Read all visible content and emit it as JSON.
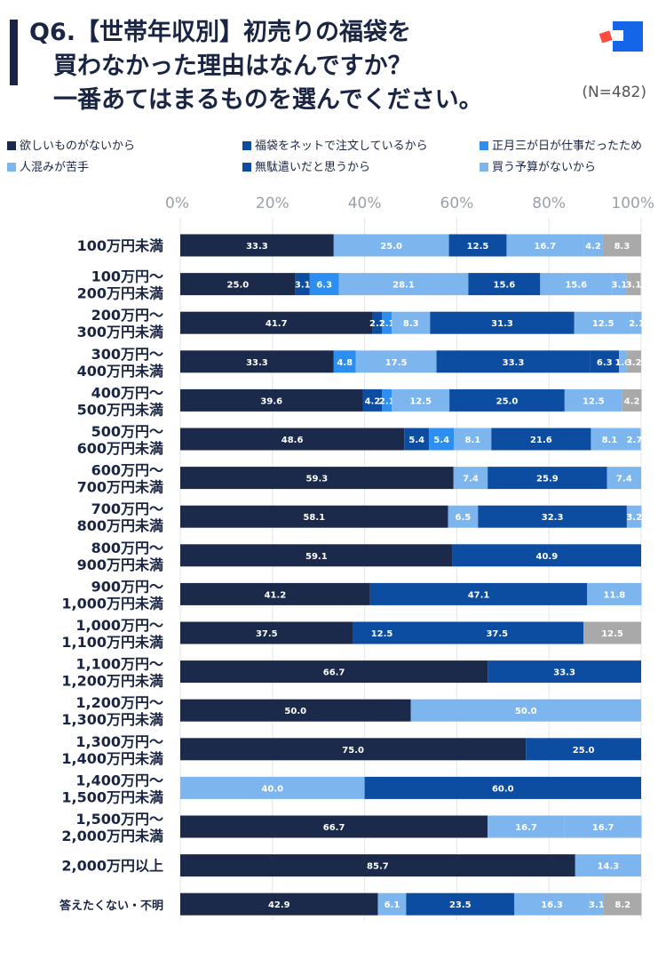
{
  "title": "Q6.【世帯年収別】初売りの福袋を\n　買わなかった理由はなんですか？\n　一番あてはまるものを選んでください。",
  "sample_size": "(N=482)",
  "colors": {
    "navy": "#1b2a4a",
    "light_blue": "#7db6ef",
    "blue_dark": "#0c4da2",
    "sky": "#2b8ef0",
    "gray": "#a9a9a9"
  },
  "chart_data": {
    "type": "bar",
    "orientation": "horizontal",
    "stacked": true,
    "title": "Q6.【世帯年収別】初売りの福袋を買わなかった理由はなんですか？一番あてはまるものを選んでください。",
    "xlabel": "",
    "ylabel": "",
    "xlim": [
      0,
      100
    ],
    "x_ticks": [
      "0%",
      "20%",
      "40%",
      "60%",
      "80%",
      "100%"
    ],
    "grid": true,
    "legend": [
      {
        "name": "欲しいものがないから",
        "color": "#1b2a4a"
      },
      {
        "name": "福袋をネットで注文しているから",
        "color": "#0c4da2"
      },
      {
        "name": "正月三が日が仕事だったため",
        "color": "#2b8ef0"
      },
      {
        "name": "人混みが苦手",
        "color": "#7db6ef"
      },
      {
        "name": "無駄遣いだと思うから",
        "color": "#0c4da2"
      },
      {
        "name": "買う予算がないから",
        "color": "#7db6ef"
      }
    ],
    "categories": [
      "100万円未満",
      "100万円〜\n200万円未満",
      "200万円〜\n300万円未満",
      "300万円〜\n400万円未満",
      "400万円〜\n500万円未満",
      "500万円〜\n600万円未満",
      "600万円〜\n700万円未満",
      "700万円〜\n800万円未満",
      "800万円〜\n900万円未満",
      "900万円〜\n1,000万円未満",
      "1,000万円〜\n1,100万円未満",
      "1,100万円〜\n1,200万円未満",
      "1,200万円〜\n1,300万円未満",
      "1,300万円〜\n1,400万円未満",
      "1,400万円〜\n1,500万円未満",
      "1,500万円〜\n2,000万円未満",
      "2,000万円以上",
      "答えたくない・不明"
    ],
    "rows": [
      [
        {
          "v": 33.3,
          "c": "#1b2a4a",
          "l": "33.3"
        },
        {
          "v": 25.0,
          "c": "#7db6ef",
          "l": "25.0"
        },
        {
          "v": 12.5,
          "c": "#0c4da2",
          "l": "12.5"
        },
        {
          "v": 16.7,
          "c": "#7db6ef",
          "l": "16.7"
        },
        {
          "v": 4.2,
          "c": "#7db6ef",
          "l": "4.2"
        },
        {
          "v": 8.3,
          "c": "#a9a9a9",
          "l": "8.3"
        }
      ],
      [
        {
          "v": 25.0,
          "c": "#1b2a4a",
          "l": "25.0"
        },
        {
          "v": 3.1,
          "c": "#0c4da2",
          "l": "3.1"
        },
        {
          "v": 6.3,
          "c": "#2b8ef0",
          "l": "6.3"
        },
        {
          "v": 28.1,
          "c": "#7db6ef",
          "l": "28.1"
        },
        {
          "v": 15.6,
          "c": "#0c4da2",
          "l": "15.6"
        },
        {
          "v": 15.6,
          "c": "#7db6ef",
          "l": "15.6"
        },
        {
          "v": 3.1,
          "c": "#7db6ef",
          "l": "3.1"
        },
        {
          "v": 3.1,
          "c": "#a9a9a9",
          "l": "3.1"
        }
      ],
      [
        {
          "v": 41.7,
          "c": "#1b2a4a",
          "l": "41.7"
        },
        {
          "v": 2.1,
          "c": "#0c4da2",
          "l": "2.1"
        },
        {
          "v": 2.1,
          "c": "#2b8ef0",
          "l": "2.1"
        },
        {
          "v": 8.3,
          "c": "#7db6ef",
          "l": "8.3"
        },
        {
          "v": 31.3,
          "c": "#0c4da2",
          "l": "31.3"
        },
        {
          "v": 12.5,
          "c": "#7db6ef",
          "l": "12.5"
        },
        {
          "v": 2.1,
          "c": "#7db6ef",
          "l": "2.1"
        }
      ],
      [
        {
          "v": 33.3,
          "c": "#1b2a4a",
          "l": "33.3"
        },
        {
          "v": 4.8,
          "c": "#2b8ef0",
          "l": "4.8"
        },
        {
          "v": 17.5,
          "c": "#7db6ef",
          "l": "17.5"
        },
        {
          "v": 33.3,
          "c": "#0c4da2",
          "l": "33.3"
        },
        {
          "v": 6.3,
          "c": "#0c4da2",
          "l": "6.3"
        },
        {
          "v": 1.6,
          "c": "#7db6ef",
          "l": "1.6"
        },
        {
          "v": 3.2,
          "c": "#a9a9a9",
          "l": "3.2"
        }
      ],
      [
        {
          "v": 39.6,
          "c": "#1b2a4a",
          "l": "39.6"
        },
        {
          "v": 4.2,
          "c": "#0c4da2",
          "l": "4.2"
        },
        {
          "v": 2.1,
          "c": "#2b8ef0",
          "l": "2.1"
        },
        {
          "v": 12.5,
          "c": "#7db6ef",
          "l": "12.5"
        },
        {
          "v": 25.0,
          "c": "#0c4da2",
          "l": "25.0"
        },
        {
          "v": 12.5,
          "c": "#7db6ef",
          "l": "12.5"
        },
        {
          "v": 4.2,
          "c": "#a9a9a9",
          "l": "4.2"
        }
      ],
      [
        {
          "v": 48.6,
          "c": "#1b2a4a",
          "l": "48.6"
        },
        {
          "v": 5.4,
          "c": "#0c4da2",
          "l": "5.4"
        },
        {
          "v": 5.4,
          "c": "#2b8ef0",
          "l": "5.4"
        },
        {
          "v": 8.1,
          "c": "#7db6ef",
          "l": "8.1"
        },
        {
          "v": 21.6,
          "c": "#0c4da2",
          "l": "21.6"
        },
        {
          "v": 8.1,
          "c": "#7db6ef",
          "l": "8.1"
        },
        {
          "v": 2.7,
          "c": "#7db6ef",
          "l": "2.7"
        }
      ],
      [
        {
          "v": 59.3,
          "c": "#1b2a4a",
          "l": "59.3"
        },
        {
          "v": 7.4,
          "c": "#7db6ef",
          "l": "7.4"
        },
        {
          "v": 25.9,
          "c": "#0c4da2",
          "l": "25.9"
        },
        {
          "v": 7.4,
          "c": "#7db6ef",
          "l": "7.4"
        }
      ],
      [
        {
          "v": 58.1,
          "c": "#1b2a4a",
          "l": "58.1"
        },
        {
          "v": 6.5,
          "c": "#7db6ef",
          "l": "6.5"
        },
        {
          "v": 32.3,
          "c": "#0c4da2",
          "l": "32.3"
        },
        {
          "v": 3.2,
          "c": "#7db6ef",
          "l": "3.2"
        }
      ],
      [
        {
          "v": 59.1,
          "c": "#1b2a4a",
          "l": "59.1"
        },
        {
          "v": 40.9,
          "c": "#0c4da2",
          "l": "40.9"
        }
      ],
      [
        {
          "v": 41.2,
          "c": "#1b2a4a",
          "l": "41.2"
        },
        {
          "v": 47.1,
          "c": "#0c4da2",
          "l": "47.1"
        },
        {
          "v": 11.8,
          "c": "#7db6ef",
          "l": "11.8"
        }
      ],
      [
        {
          "v": 37.5,
          "c": "#1b2a4a",
          "l": "37.5"
        },
        {
          "v": 12.5,
          "c": "#0c4da2",
          "l": "12.5"
        },
        {
          "v": 37.5,
          "c": "#0c4da2",
          "l": "37.5"
        },
        {
          "v": 12.5,
          "c": "#a9a9a9",
          "l": "12.5"
        }
      ],
      [
        {
          "v": 66.7,
          "c": "#1b2a4a",
          "l": "66.7"
        },
        {
          "v": 33.3,
          "c": "#0c4da2",
          "l": "33.3"
        }
      ],
      [
        {
          "v": 50.0,
          "c": "#1b2a4a",
          "l": "50.0"
        },
        {
          "v": 50.0,
          "c": "#7db6ef",
          "l": "50.0"
        }
      ],
      [
        {
          "v": 75.0,
          "c": "#1b2a4a",
          "l": "75.0"
        },
        {
          "v": 25.0,
          "c": "#0c4da2",
          "l": "25.0"
        }
      ],
      [
        {
          "v": 40.0,
          "c": "#7db6ef",
          "l": "40.0"
        },
        {
          "v": 60.0,
          "c": "#0c4da2",
          "l": "60.0"
        }
      ],
      [
        {
          "v": 66.7,
          "c": "#1b2a4a",
          "l": "66.7"
        },
        {
          "v": 16.7,
          "c": "#7db6ef",
          "l": "16.7"
        },
        {
          "v": 16.7,
          "c": "#7db6ef",
          "l": "16.7"
        }
      ],
      [
        {
          "v": 85.7,
          "c": "#1b2a4a",
          "l": "85.7"
        },
        {
          "v": 14.3,
          "c": "#7db6ef",
          "l": "14.3"
        }
      ],
      [
        {
          "v": 42.9,
          "c": "#1b2a4a",
          "l": "42.9"
        },
        {
          "v": 6.1,
          "c": "#7db6ef",
          "l": "6.1"
        },
        {
          "v": 23.5,
          "c": "#0c4da2",
          "l": "23.5"
        },
        {
          "v": 16.3,
          "c": "#7db6ef",
          "l": "16.3"
        },
        {
          "v": 3.1,
          "c": "#7db6ef",
          "l": "3.1"
        },
        {
          "v": 8.2,
          "c": "#a9a9a9",
          "l": "8.2"
        }
      ]
    ]
  }
}
